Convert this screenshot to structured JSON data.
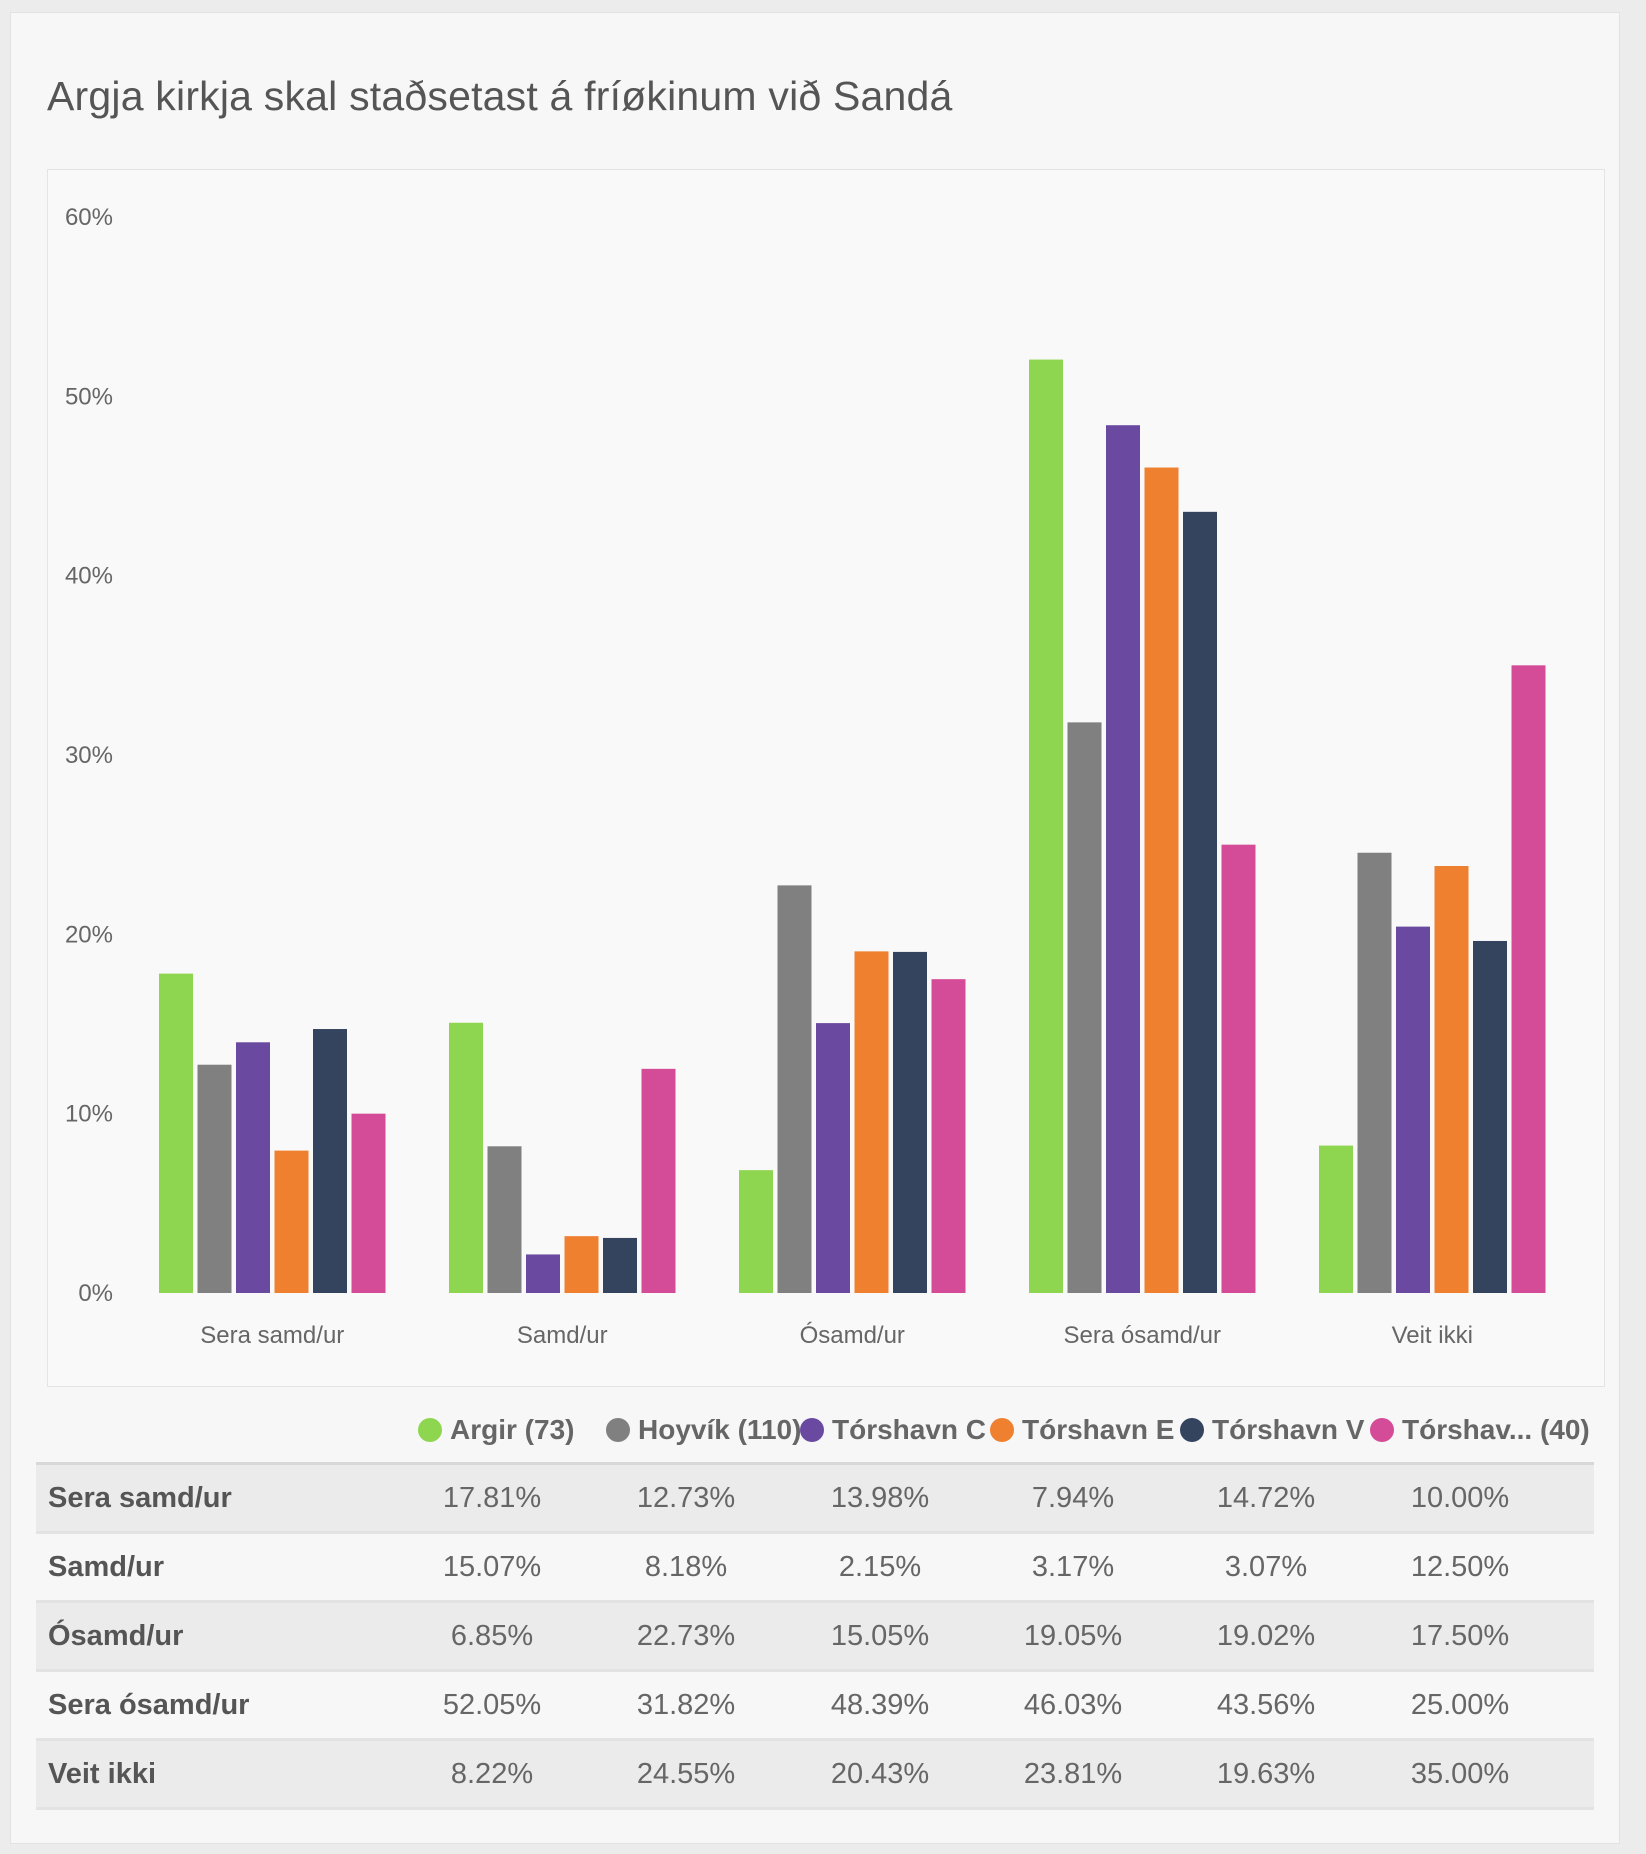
{
  "title": "Argja kirkja skal staðsetast á fríøkinum við Sandá",
  "colors": {
    "Argir": "#8fd650",
    "Hoyvik": "#808080",
    "TorshavnC": "#6a4aa0",
    "TorshavnE": "#ef8030",
    "TorshavnV": "#34445e",
    "TorshavnLast": "#d44b97"
  },
  "chart_data": {
    "type": "bar",
    "title": "Argja kirkja skal staðsetast á fríøkinum við Sandá",
    "categories": [
      "Sera samd/ur",
      "Samd/ur",
      "Ósamd/ur",
      "Sera ósamd/ur",
      "Veit ikki"
    ],
    "ylim": [
      0,
      60
    ],
    "yticks": [
      "0%",
      "10%",
      "20%",
      "30%",
      "40%",
      "50%",
      "60%"
    ],
    "grid": false,
    "legend_position": "bottom",
    "series": [
      {
        "name": "Argir (73)",
        "color": "#8fd650",
        "values": [
          17.81,
          15.07,
          6.85,
          52.05,
          8.22
        ]
      },
      {
        "name": "Hoyvík (110)",
        "color": "#808080",
        "values": [
          12.73,
          8.18,
          22.73,
          31.82,
          24.55
        ]
      },
      {
        "name": "Tórshavn C",
        "color": "#6a4aa0",
        "values": [
          13.98,
          2.15,
          15.05,
          48.39,
          20.43
        ]
      },
      {
        "name": "Tórshavn E",
        "color": "#ef8030",
        "values": [
          7.94,
          3.17,
          19.05,
          46.03,
          23.81
        ]
      },
      {
        "name": "Tórshavn V",
        "color": "#34445e",
        "values": [
          14.72,
          3.07,
          19.02,
          43.56,
          19.63
        ]
      },
      {
        "name": "Tórshav... (40)",
        "color": "#d44b97",
        "values": [
          10.0,
          12.5,
          17.5,
          25.0,
          35.0
        ]
      }
    ]
  },
  "table": {
    "rows": [
      {
        "label": "Sera samd/ur",
        "cells": [
          "17.81%",
          "12.73%",
          "13.98%",
          "7.94%",
          "14.72%",
          "10.00%"
        ]
      },
      {
        "label": "Samd/ur",
        "cells": [
          "15.07%",
          "8.18%",
          "2.15%",
          "3.17%",
          "3.07%",
          "12.50%"
        ]
      },
      {
        "label": "Ósamd/ur",
        "cells": [
          "6.85%",
          "22.73%",
          "15.05%",
          "19.05%",
          "19.02%",
          "17.50%"
        ]
      },
      {
        "label": "Sera ósamd/ur",
        "cells": [
          "52.05%",
          "31.82%",
          "48.39%",
          "46.03%",
          "43.56%",
          "25.00%"
        ]
      },
      {
        "label": "Veit ikki",
        "cells": [
          "8.22%",
          "24.55%",
          "20.43%",
          "23.81%",
          "19.63%",
          "35.00%"
        ]
      }
    ]
  }
}
